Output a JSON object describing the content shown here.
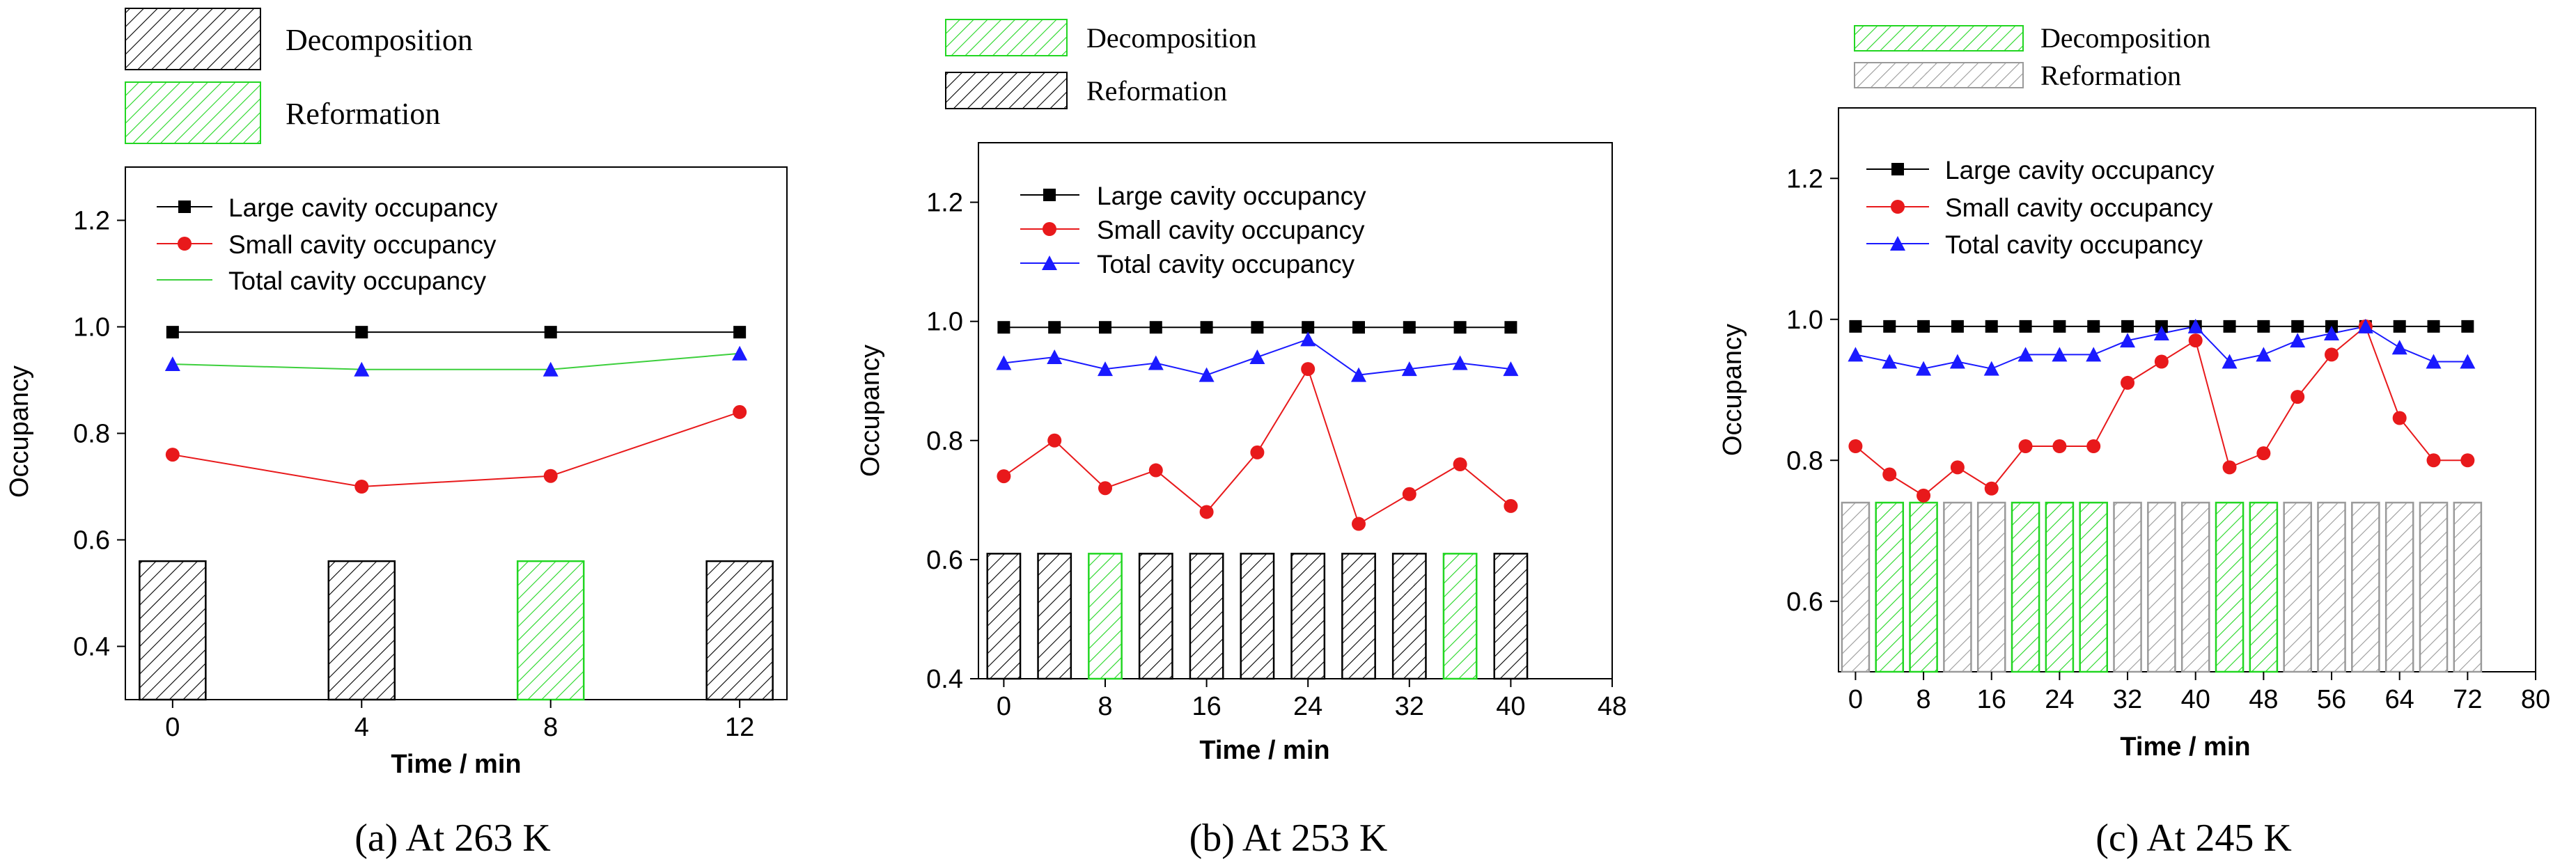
{
  "figure": {
    "panels": [
      {
        "label": "(a)",
        "caption": "At 263 K"
      },
      {
        "label": "(b)",
        "caption": "At 253 K"
      },
      {
        "label": "(c)",
        "caption": "At 245 K"
      }
    ]
  },
  "colors": {
    "decomposition_a": "#000000",
    "reformation_a": "#22d622",
    "decomposition_bc": "#22d622",
    "reformation_b": "#000000",
    "reformation_c": "#9a9a9a",
    "large_series": "#000000",
    "small_series": "#e8191b",
    "total_series_a": "#3ccf3c",
    "total_series_bc": "#1a1aff"
  },
  "chart_data": [
    {
      "type": "line",
      "panel": "a",
      "title": "At 263 K",
      "xlabel": "Time / min",
      "ylabel": "Occupancy",
      "xlim": [
        -1,
        13
      ],
      "ylim": [
        0.3,
        1.3
      ],
      "xticks": [
        0,
        4,
        8,
        12
      ],
      "yticks": [
        0.4,
        0.6,
        0.8,
        1.0,
        1.2
      ],
      "ytick_labels": [
        "0.4",
        "0.6",
        "0.8",
        "1.0",
        "1.2"
      ],
      "legend": [
        "Large cavity occupancy",
        "Small cavity occupancy",
        "Total cavity occupancy"
      ],
      "series": [
        {
          "name": "Large cavity occupancy",
          "marker": "square",
          "x": [
            0,
            4,
            8,
            12
          ],
          "values": [
            0.99,
            0.99,
            0.99,
            0.99
          ]
        },
        {
          "name": "Small cavity occupancy",
          "marker": "circle",
          "x": [
            0,
            4,
            8,
            12
          ],
          "values": [
            0.76,
            0.7,
            0.72,
            0.84
          ]
        },
        {
          "name": "Total cavity occupancy",
          "marker": "triangle",
          "x": [
            0,
            4,
            8,
            12
          ],
          "values": [
            0.93,
            0.92,
            0.92,
            0.95
          ]
        }
      ],
      "bar_legend": [
        {
          "label": "Decomposition",
          "kind": "decomposition"
        },
        {
          "label": "Reformation",
          "kind": "reformation"
        }
      ],
      "bars": {
        "positions": [
          0,
          4,
          8,
          12
        ],
        "kinds": [
          "decomposition",
          "decomposition",
          "reformation",
          "decomposition"
        ],
        "top": 0.56,
        "bottom": 0.3,
        "width": 1.4
      }
    },
    {
      "type": "line",
      "panel": "b",
      "title": "At 253 K",
      "xlabel": "Time / min",
      "ylabel": "Occupancy",
      "xlim": [
        -2,
        48
      ],
      "ylim": [
        0.4,
        1.3
      ],
      "xticks": [
        0,
        8,
        16,
        24,
        32,
        40,
        48
      ],
      "yticks": [
        0.4,
        0.6,
        0.8,
        1.0,
        1.2
      ],
      "ytick_labels": [
        "0.4",
        "0.6",
        "0.8",
        "1.0",
        "1.2"
      ],
      "legend": [
        "Large cavity occupancy",
        "Small cavity occupancy",
        "Total cavity occupancy"
      ],
      "series": [
        {
          "name": "Large cavity occupancy",
          "marker": "square",
          "x": [
            0,
            4,
            8,
            12,
            16,
            20,
            24,
            28,
            32,
            36,
            40
          ],
          "values": [
            0.99,
            0.99,
            0.99,
            0.99,
            0.99,
            0.99,
            0.99,
            0.99,
            0.99,
            0.99,
            0.99
          ]
        },
        {
          "name": "Small cavity occupancy",
          "marker": "circle",
          "x": [
            0,
            4,
            8,
            12,
            16,
            20,
            24,
            28,
            32,
            36,
            40
          ],
          "values": [
            0.74,
            0.8,
            0.72,
            0.75,
            0.68,
            0.78,
            0.92,
            0.66,
            0.71,
            0.76,
            0.69
          ]
        },
        {
          "name": "Total cavity occupancy",
          "marker": "triangle",
          "x": [
            0,
            4,
            8,
            12,
            16,
            20,
            24,
            28,
            32,
            36,
            40
          ],
          "values": [
            0.93,
            0.94,
            0.92,
            0.93,
            0.91,
            0.94,
            0.97,
            0.91,
            0.92,
            0.93,
            0.92
          ]
        }
      ],
      "bar_legend": [
        {
          "label": "Decomposition",
          "kind": "decomposition"
        },
        {
          "label": "Reformation",
          "kind": "reformation"
        }
      ],
      "bars": {
        "positions": [
          0,
          4,
          8,
          12,
          16,
          20,
          24,
          28,
          32,
          36,
          40
        ],
        "kinds": [
          "reformation",
          "reformation",
          "decomposition",
          "reformation",
          "reformation",
          "reformation",
          "reformation",
          "reformation",
          "reformation",
          "decomposition",
          "reformation"
        ],
        "top": 0.61,
        "bottom": 0.4,
        "width": 2.6
      }
    },
    {
      "type": "line",
      "panel": "c",
      "title": "At 245 K",
      "xlabel": "Time / min",
      "ylabel": "Occupancy",
      "xlim": [
        -2,
        80
      ],
      "ylim": [
        0.5,
        1.3
      ],
      "xticks": [
        0,
        8,
        16,
        24,
        32,
        40,
        48,
        56,
        64,
        72,
        80
      ],
      "yticks": [
        0.6,
        0.8,
        1.0,
        1.2
      ],
      "ytick_labels": [
        "0.6",
        "0.8",
        "1.0",
        "1.2"
      ],
      "legend": [
        "Large cavity occupancy",
        "Small cavity occupancy",
        "Total cavity occupancy"
      ],
      "series": [
        {
          "name": "Large cavity occupancy",
          "marker": "square",
          "x": [
            0,
            4,
            8,
            12,
            16,
            20,
            24,
            28,
            32,
            36,
            40,
            44,
            48,
            52,
            56,
            60,
            64,
            68,
            72
          ],
          "values": [
            0.99,
            0.99,
            0.99,
            0.99,
            0.99,
            0.99,
            0.99,
            0.99,
            0.99,
            0.99,
            0.99,
            0.99,
            0.99,
            0.99,
            0.99,
            0.99,
            0.99,
            0.99,
            0.99
          ]
        },
        {
          "name": "Small cavity occupancy",
          "marker": "circle",
          "x": [
            0,
            4,
            8,
            12,
            16,
            20,
            24,
            28,
            32,
            36,
            40,
            44,
            48,
            52,
            56,
            60,
            64,
            68,
            72
          ],
          "values": [
            0.82,
            0.78,
            0.75,
            0.79,
            0.76,
            0.82,
            0.82,
            0.82,
            0.91,
            0.94,
            0.97,
            0.79,
            0.81,
            0.89,
            0.95,
            0.99,
            0.86,
            0.8,
            0.8
          ]
        },
        {
          "name": "Total cavity occupancy",
          "marker": "triangle",
          "x": [
            0,
            4,
            8,
            12,
            16,
            20,
            24,
            28,
            32,
            36,
            40,
            44,
            48,
            52,
            56,
            60,
            64,
            68,
            72
          ],
          "values": [
            0.95,
            0.94,
            0.93,
            0.94,
            0.93,
            0.95,
            0.95,
            0.95,
            0.97,
            0.98,
            0.99,
            0.94,
            0.95,
            0.97,
            0.98,
            0.99,
            0.96,
            0.94,
            0.94
          ]
        }
      ],
      "bar_legend": [
        {
          "label": "Decomposition",
          "kind": "decomposition"
        },
        {
          "label": "Reformation",
          "kind": "reformation"
        }
      ],
      "bars": {
        "positions": [
          0,
          4,
          8,
          12,
          16,
          20,
          24,
          28,
          32,
          36,
          40,
          44,
          48,
          52,
          56,
          60,
          64,
          68,
          72
        ],
        "kinds": [
          "reformation",
          "decomposition",
          "decomposition",
          "reformation",
          "reformation",
          "decomposition",
          "decomposition",
          "decomposition",
          "reformation",
          "reformation",
          "reformation",
          "decomposition",
          "decomposition",
          "reformation",
          "reformation",
          "reformation",
          "reformation",
          "reformation",
          "reformation"
        ],
        "top": 0.74,
        "bottom": 0.5,
        "width": 3.2
      }
    }
  ]
}
